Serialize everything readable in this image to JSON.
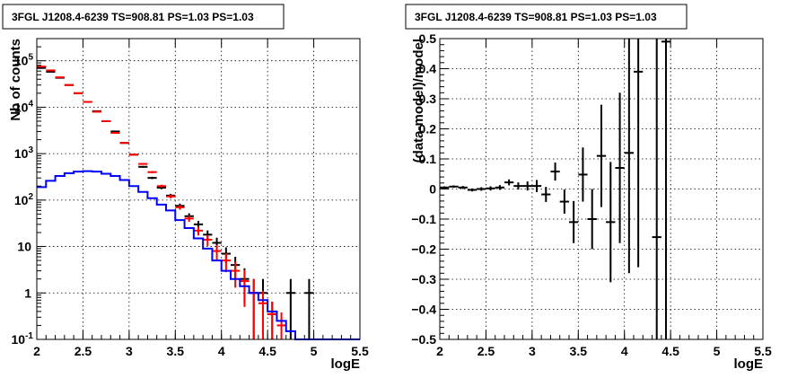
{
  "chart_data": [
    {
      "type": "line",
      "title": "3FGL J1208.4-6239 TS=908.81 PS=1.03 PS=1.03",
      "xlabel": "logE",
      "ylabel": "Nb of counts",
      "yscale": "log",
      "xlim": [
        2,
        5.5
      ],
      "ylim": [
        0.1,
        300000
      ],
      "grid": true,
      "x_ticks": [
        "2",
        "2.5",
        "3",
        "3.5",
        "4",
        "4.5",
        "5",
        "5.5"
      ],
      "y_ticks": [
        "10^-1",
        "1",
        "10",
        "10^2",
        "10^3",
        "10^4",
        "10^5"
      ],
      "colors": {
        "data": "#000000",
        "total_model": "#ff0000",
        "source_model": "#0000ff"
      },
      "series": [
        {
          "role": "data",
          "style": "errorbar",
          "points": [
            {
              "x": 2.05,
              "y": 70000,
              "err": 270
            },
            {
              "x": 2.15,
              "y": 58000,
              "err": 240
            },
            {
              "x": 2.25,
              "y": 43000,
              "err": 210
            },
            {
              "x": 2.35,
              "y": 30000,
              "err": 170
            },
            {
              "x": 2.45,
              "y": 20000,
              "err": 140
            },
            {
              "x": 2.55,
              "y": 13000,
              "err": 115
            },
            {
              "x": 2.65,
              "y": 8200,
              "err": 90
            },
            {
              "x": 2.75,
              "y": 5000,
              "err": 70
            },
            {
              "x": 2.85,
              "y": 3000,
              "err": 55
            },
            {
              "x": 2.95,
              "y": 1700,
              "err": 41
            },
            {
              "x": 3.05,
              "y": 950,
              "err": 31
            },
            {
              "x": 3.15,
              "y": 520,
              "err": 23
            },
            {
              "x": 3.25,
              "y": 300,
              "err": 17
            },
            {
              "x": 3.35,
              "y": 185,
              "err": 14
            },
            {
              "x": 3.45,
              "y": 125,
              "err": 11
            },
            {
              "x": 3.55,
              "y": 75,
              "err": 9
            },
            {
              "x": 3.65,
              "y": 45,
              "err": 7
            },
            {
              "x": 3.75,
              "y": 30,
              "err": 5.5
            },
            {
              "x": 3.85,
              "y": 18,
              "err": 4.2
            },
            {
              "x": 3.95,
              "y": 12,
              "err": 3.5
            },
            {
              "x": 4.05,
              "y": 7,
              "err": 2.6
            },
            {
              "x": 4.15,
              "y": 4,
              "err": 2
            },
            {
              "x": 4.25,
              "y": 2,
              "err": 1.4
            },
            {
              "x": 4.35,
              "y": 1,
              "err": 1
            },
            {
              "x": 4.45,
              "y": 1,
              "err": 1
            },
            {
              "x": 4.55,
              "y": 0.35,
              "err": 0.3
            },
            {
              "x": 4.75,
              "y": 1,
              "err": 1
            },
            {
              "x": 4.95,
              "y": 1,
              "err": 1
            }
          ]
        },
        {
          "role": "total_model",
          "style": "errorbar",
          "points": [
            {
              "x": 2.05,
              "y": 75000,
              "err": 275
            },
            {
              "x": 2.15,
              "y": 62000,
              "err": 250
            },
            {
              "x": 2.25,
              "y": 44000,
              "err": 210
            },
            {
              "x": 2.35,
              "y": 30000,
              "err": 170
            },
            {
              "x": 2.45,
              "y": 20000,
              "err": 140
            },
            {
              "x": 2.55,
              "y": 13000,
              "err": 115
            },
            {
              "x": 2.65,
              "y": 8000,
              "err": 90
            },
            {
              "x": 2.75,
              "y": 5000,
              "err": 70
            },
            {
              "x": 2.85,
              "y": 2800,
              "err": 53
            },
            {
              "x": 2.95,
              "y": 1700,
              "err": 41
            },
            {
              "x": 3.05,
              "y": 950,
              "err": 31
            },
            {
              "x": 3.15,
              "y": 600,
              "err": 24
            },
            {
              "x": 3.25,
              "y": 400,
              "err": 20
            },
            {
              "x": 3.35,
              "y": 200,
              "err": 14
            },
            {
              "x": 3.45,
              "y": 120,
              "err": 11
            },
            {
              "x": 3.55,
              "y": 70,
              "err": 8
            },
            {
              "x": 3.65,
              "y": 40,
              "err": 6
            },
            {
              "x": 3.75,
              "y": 22,
              "err": 4.7
            },
            {
              "x": 3.85,
              "y": 14,
              "err": 3.7
            },
            {
              "x": 3.95,
              "y": 8,
              "err": 2.8
            },
            {
              "x": 4.05,
              "y": 5,
              "err": 2.2
            },
            {
              "x": 4.15,
              "y": 3,
              "err": 1.7
            },
            {
              "x": 4.25,
              "y": 1.8,
              "err": 1.3
            },
            {
              "x": 4.35,
              "y": 1,
              "err": 1
            },
            {
              "x": 4.45,
              "y": 0.6,
              "err": 0.5
            },
            {
              "x": 4.55,
              "y": 0.35,
              "err": 0.3
            },
            {
              "x": 4.65,
              "y": 0.2,
              "err": 0.18
            }
          ]
        },
        {
          "role": "source_model",
          "style": "step",
          "bin_edges": [
            2.0,
            2.1,
            2.2,
            2.3,
            2.4,
            2.5,
            2.6,
            2.7,
            2.8,
            2.9,
            3.0,
            3.1,
            3.2,
            3.3,
            3.4,
            3.5,
            3.6,
            3.7,
            3.8,
            3.9,
            4.0,
            4.1,
            4.2,
            4.3,
            4.4,
            4.5,
            4.6,
            4.7,
            4.8,
            4.9,
            5.0,
            5.1,
            5.2,
            5.3,
            5.4,
            5.5
          ],
          "values": [
            190,
            260,
            330,
            380,
            410,
            420,
            410,
            370,
            330,
            270,
            200,
            150,
            110,
            80,
            60,
            37,
            25,
            15,
            9,
            5,
            3,
            2,
            1.4,
            1,
            0.7,
            0.4,
            0.25,
            0.15,
            0.1,
            0.1,
            0.1,
            0.1,
            0.1,
            0.1,
            0.1
          ]
        }
      ]
    },
    {
      "type": "scatter",
      "title": "3FGL J1208.4-6239 TS=908.81 PS=1.03 PS=1.03",
      "xlabel": "logE",
      "ylabel": "(data-model)/model",
      "xlim": [
        2,
        5.5
      ],
      "ylim": [
        -0.5,
        0.5
      ],
      "grid": true,
      "x_ticks": [
        "2",
        "2.5",
        "3",
        "3.5",
        "4",
        "4.5",
        "5",
        "5.5"
      ],
      "y_ticks": [
        "−0.5",
        "−0.4",
        "−0.3",
        "−0.2",
        "−0.1",
        "0",
        "0.1",
        "0.2",
        "0.3",
        "0.4",
        "0.5"
      ],
      "colors": {
        "residual": "#000000"
      },
      "series": [
        {
          "role": "residual",
          "style": "errorbar",
          "points": [
            {
              "x": 2.05,
              "y": 0.005,
              "err": 0.004
            },
            {
              "x": 2.15,
              "y": 0.008,
              "err": 0.004
            },
            {
              "x": 2.25,
              "y": 0.005,
              "err": 0.005
            },
            {
              "x": 2.35,
              "y": -0.003,
              "err": 0.005
            },
            {
              "x": 2.45,
              "y": 0.0,
              "err": 0.006
            },
            {
              "x": 2.55,
              "y": 0.002,
              "err": 0.007
            },
            {
              "x": 2.65,
              "y": 0.005,
              "err": 0.008
            },
            {
              "x": 2.75,
              "y": 0.022,
              "err": 0.01
            },
            {
              "x": 2.85,
              "y": 0.01,
              "err": 0.012
            },
            {
              "x": 2.95,
              "y": 0.01,
              "err": 0.015
            },
            {
              "x": 3.05,
              "y": 0.01,
              "err": 0.02
            },
            {
              "x": 3.15,
              "y": -0.018,
              "err": 0.025
            },
            {
              "x": 3.25,
              "y": 0.058,
              "err": 0.03
            },
            {
              "x": 3.35,
              "y": -0.042,
              "err": 0.04
            },
            {
              "x": 3.45,
              "y": -0.11,
              "err": 0.07
            },
            {
              "x": 3.55,
              "y": 0.048,
              "err": 0.09
            },
            {
              "x": 3.65,
              "y": -0.1,
              "err": 0.1
            },
            {
              "x": 3.75,
              "y": 0.11,
              "err": 0.17
            },
            {
              "x": 3.85,
              "y": -0.11,
              "err": 0.2
            },
            {
              "x": 3.95,
              "y": 0.07,
              "err": 0.25
            },
            {
              "x": 4.05,
              "y": 0.12,
              "err": 0.4
            },
            {
              "x": 4.15,
              "y": 0.39,
              "err": 0.65
            },
            {
              "x": 4.35,
              "y": -0.16,
              "err": 0.8
            },
            {
              "x": 4.45,
              "y": 0.49,
              "err": 1.0
            }
          ]
        }
      ]
    }
  ]
}
